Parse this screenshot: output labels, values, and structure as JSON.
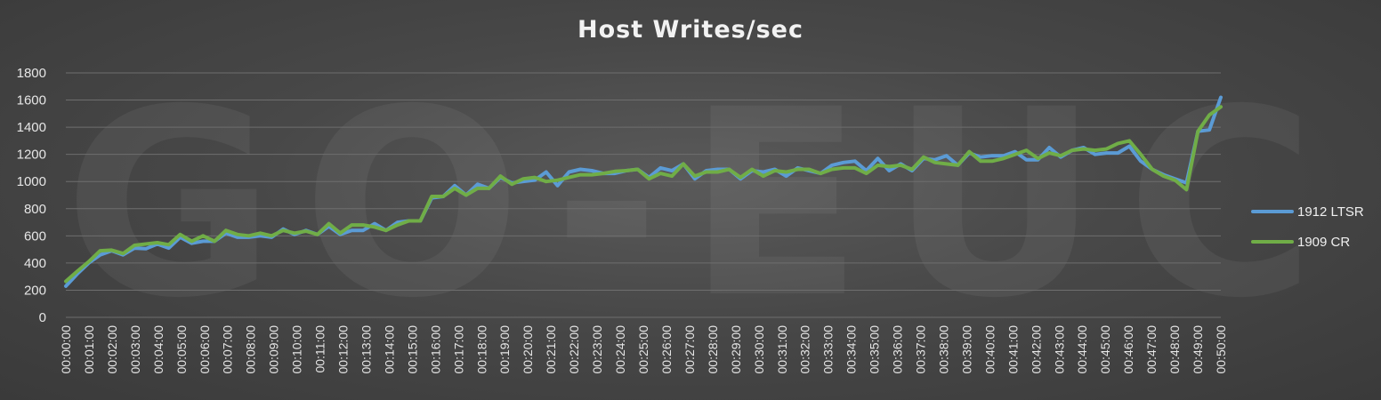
{
  "chart_data": {
    "type": "line",
    "title": "Host Writes/sec",
    "xlabel": "",
    "ylabel": "",
    "ylim": [
      0,
      1800
    ],
    "yticks": [
      "0",
      "200",
      "400",
      "600",
      "800",
      "1000",
      "1200",
      "1400",
      "1600",
      "1800"
    ],
    "xtick_labels": [
      "00:00:00",
      "00:01:00",
      "00:02:00",
      "00:03:00",
      "00:04:00",
      "00:05:00",
      "00:06:00",
      "00:07:00",
      "00:08:00",
      "00:09:00",
      "00:10:00",
      "00:11:00",
      "00:12:00",
      "00:13:00",
      "00:14:00",
      "00:15:00",
      "00:16:00",
      "00:17:00",
      "00:18:00",
      "00:19:00",
      "00:20:00",
      "00:21:00",
      "00:22:00",
      "00:23:00",
      "00:24:00",
      "00:25:00",
      "00:26:00",
      "00:27:00",
      "00:28:00",
      "00:29:00",
      "00:30:00",
      "00:31:00",
      "00:32:00",
      "00:33:00",
      "00:34:00",
      "00:35:00",
      "00:36:00",
      "00:37:00",
      "00:38:00",
      "00:39:00",
      "00:40:00",
      "00:41:00",
      "00:42:00",
      "00:43:00",
      "00:44:00",
      "00:45:00",
      "00:46:00",
      "00:47:00",
      "00:48:00",
      "00:49:00",
      "00:50:00"
    ],
    "x_interval_seconds": 30,
    "grid": true,
    "legend_position": "right",
    "watermark": "GO-EUC",
    "series": [
      {
        "name": "1912 LTSR",
        "color": "#5b9bd5",
        "values": [
          230,
          320,
          400,
          460,
          490,
          460,
          510,
          505,
          540,
          510,
          590,
          545,
          560,
          560,
          620,
          590,
          590,
          600,
          590,
          650,
          610,
          640,
          610,
          670,
          610,
          640,
          640,
          690,
          640,
          700,
          710,
          710,
          880,
          890,
          970,
          900,
          980,
          950,
          1030,
          990,
          1000,
          1010,
          1070,
          970,
          1070,
          1090,
          1080,
          1060,
          1060,
          1080,
          1090,
          1030,
          1100,
          1080,
          1130,
          1020,
          1080,
          1090,
          1090,
          1020,
          1080,
          1070,
          1090,
          1040,
          1100,
          1080,
          1060,
          1120,
          1140,
          1150,
          1080,
          1170,
          1080,
          1130,
          1080,
          1170,
          1160,
          1190,
          1120,
          1210,
          1180,
          1190,
          1190,
          1220,
          1160,
          1160,
          1250,
          1180,
          1230,
          1250,
          1200,
          1210,
          1210,
          1260,
          1150,
          1090,
          1050,
          1020,
          990,
          1370,
          1380,
          1620
        ]
      },
      {
        "name": "1909 CR",
        "color": "#70ad47",
        "values": [
          265,
          340,
          410,
          490,
          495,
          470,
          530,
          540,
          550,
          535,
          610,
          560,
          600,
          560,
          640,
          610,
          600,
          620,
          600,
          640,
          620,
          635,
          610,
          690,
          620,
          680,
          680,
          665,
          640,
          680,
          710,
          710,
          890,
          890,
          950,
          900,
          950,
          950,
          1040,
          980,
          1020,
          1030,
          1000,
          1010,
          1030,
          1050,
          1050,
          1060,
          1075,
          1080,
          1090,
          1020,
          1060,
          1040,
          1130,
          1040,
          1070,
          1070,
          1090,
          1030,
          1090,
          1040,
          1080,
          1070,
          1090,
          1090,
          1060,
          1090,
          1100,
          1100,
          1060,
          1120,
          1110,
          1120,
          1090,
          1180,
          1140,
          1130,
          1120,
          1220,
          1150,
          1150,
          1170,
          1200,
          1230,
          1170,
          1210,
          1190,
          1230,
          1240,
          1230,
          1240,
          1280,
          1300,
          1200,
          1090,
          1040,
          1010,
          940,
          1370,
          1490,
          1550
        ]
      }
    ]
  }
}
